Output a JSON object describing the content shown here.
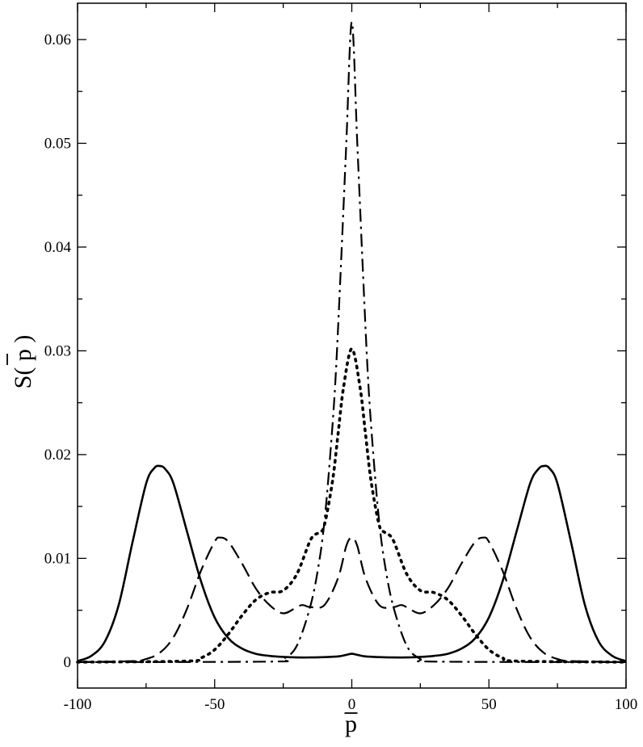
{
  "chart_data": {
    "type": "line",
    "title": "",
    "xlabel": "p",
    "ylabel": "S( p )",
    "xlim": [
      -100,
      100
    ],
    "ylim": [
      -0.0025,
      0.0635
    ],
    "x_ticks": [
      -100,
      -50,
      0,
      50,
      100
    ],
    "x_tick_labels": [
      "-100",
      "-50",
      "0",
      "50",
      "100"
    ],
    "y_ticks": [
      0,
      0.01,
      0.02,
      0.03,
      0.04,
      0.05,
      0.06
    ],
    "y_tick_labels": [
      "0",
      "0.01",
      "0.02",
      "0.03",
      "0.04",
      "0.05",
      "0.06"
    ],
    "grid": false,
    "legend": "none",
    "series": [
      {
        "style": "solid",
        "x": [
          -100,
          -95,
          -90,
          -85,
          -80,
          -75,
          -72,
          -70,
          -68,
          -65,
          -60,
          -55,
          -50,
          -45,
          -40,
          -35,
          -30,
          -25,
          -20,
          -15,
          -10,
          -5,
          -2,
          0,
          2,
          5,
          10,
          15,
          20,
          25,
          30,
          35,
          40,
          45,
          50,
          55,
          60,
          65,
          68,
          70,
          72,
          75,
          80,
          85,
          90,
          95,
          100
        ],
        "y": [
          0.0001,
          0.0006,
          0.002,
          0.0055,
          0.0115,
          0.0172,
          0.0187,
          0.0189,
          0.0186,
          0.0172,
          0.0125,
          0.0078,
          0.0043,
          0.0023,
          0.0013,
          0.0008,
          0.0006,
          0.0005,
          0.00045,
          0.00045,
          0.00048,
          0.00055,
          0.0007,
          0.0008,
          0.0007,
          0.00055,
          0.00048,
          0.00045,
          0.00045,
          0.0005,
          0.0006,
          0.0008,
          0.0013,
          0.0023,
          0.0043,
          0.0078,
          0.0125,
          0.0172,
          0.0186,
          0.0189,
          0.0187,
          0.0172,
          0.0115,
          0.0055,
          0.002,
          0.0006,
          0.0001
        ]
      },
      {
        "style": "dashed",
        "x": [
          -100,
          -80,
          -75,
          -70,
          -65,
          -60,
          -55,
          -50,
          -48,
          -45,
          -40,
          -35,
          -30,
          -25,
          -20,
          -18,
          -15,
          -10,
          -5,
          -2,
          0,
          2,
          5,
          10,
          15,
          18,
          20,
          25,
          30,
          35,
          40,
          45,
          48,
          50,
          55,
          60,
          65,
          70,
          75,
          80,
          100
        ],
        "y": [
          0,
          0.0001,
          0.0003,
          0.0009,
          0.0024,
          0.0052,
          0.0088,
          0.0116,
          0.012,
          0.0116,
          0.0095,
          0.0071,
          0.0055,
          0.0047,
          0.0053,
          0.0055,
          0.0053,
          0.0055,
          0.0081,
          0.0112,
          0.012,
          0.0112,
          0.0081,
          0.0055,
          0.0053,
          0.0055,
          0.0053,
          0.0047,
          0.0055,
          0.0071,
          0.0095,
          0.0116,
          0.012,
          0.0116,
          0.0088,
          0.0052,
          0.0024,
          0.0009,
          0.0003,
          0.0001,
          0
        ]
      },
      {
        "style": "dotted",
        "x": [
          -100,
          -60,
          -55,
          -50,
          -45,
          -40,
          -35,
          -30,
          -25,
          -20,
          -15,
          -12,
          -10,
          -7,
          -5,
          -3,
          0,
          3,
          5,
          7,
          10,
          12,
          15,
          20,
          25,
          30,
          35,
          40,
          45,
          50,
          55,
          60,
          100
        ],
        "y": [
          0,
          0.0001,
          0.0004,
          0.0012,
          0.0027,
          0.0045,
          0.006,
          0.0067,
          0.0069,
          0.0085,
          0.0118,
          0.0125,
          0.0132,
          0.0175,
          0.022,
          0.0265,
          0.0302,
          0.0265,
          0.022,
          0.0175,
          0.0132,
          0.0125,
          0.0118,
          0.0085,
          0.0069,
          0.0067,
          0.006,
          0.0045,
          0.0027,
          0.0012,
          0.0004,
          0.0001,
          0
        ]
      },
      {
        "style": "dash-dot",
        "x": [
          -100,
          -30,
          -25,
          -20,
          -15,
          -12,
          -10,
          -8,
          -6,
          -4,
          -2,
          0,
          2,
          4,
          6,
          8,
          10,
          12,
          15,
          20,
          25,
          30,
          100
        ],
        "y": [
          0,
          5e-05,
          0.0003,
          0.0016,
          0.0055,
          0.0095,
          0.0135,
          0.0195,
          0.027,
          0.038,
          0.05,
          0.0617,
          0.05,
          0.038,
          0.027,
          0.0195,
          0.0135,
          0.0095,
          0.0055,
          0.0016,
          0.0003,
          5e-05,
          0
        ]
      }
    ]
  }
}
